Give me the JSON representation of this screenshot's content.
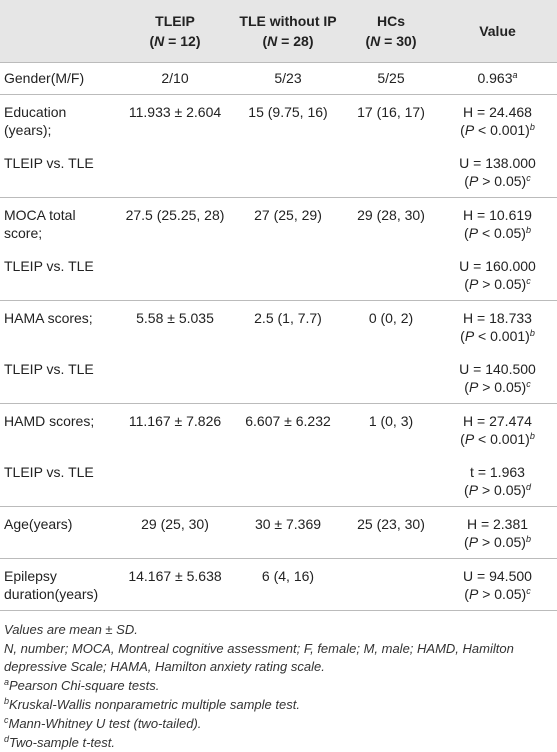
{
  "header": {
    "columns": [
      {
        "title": "TLEIP",
        "n": [
          "(",
          "N",
          " = 12)"
        ]
      },
      {
        "title": "TLE without IP",
        "n": [
          "(",
          "N",
          " = 28)"
        ]
      },
      {
        "title": "HCs",
        "n": [
          "(",
          "N",
          " = 30)"
        ]
      },
      {
        "title": "Value"
      }
    ]
  },
  "table": {
    "rows": [
      {
        "label": [
          "Gender(M/F)"
        ],
        "cells": [
          "2/10",
          "5/23",
          "5/25"
        ],
        "value": {
          "main": "0.963",
          "note": "a"
        },
        "rule": true
      },
      {
        "label": [
          "Education",
          "(years);"
        ],
        "cells": [
          "11.933 ± 2.604",
          "15 (9.75, 16)",
          "17 (16, 17)"
        ],
        "value": {
          "main": "H = 24.468",
          "p": [
            "(",
            "P",
            " < 0.001)"
          ],
          "note": "b"
        }
      },
      {
        "label": [
          "TLEIP vs. TLE"
        ],
        "value": {
          "main": "U = 138.000",
          "p": [
            "(",
            "P",
            " > 0.05)"
          ],
          "note": "c"
        },
        "rule": true
      },
      {
        "label": [
          "MOCA total",
          "score;"
        ],
        "cells": [
          "27.5 (25.25, 28)",
          "27 (25, 29)",
          "29 (28, 30)"
        ],
        "value": {
          "main": "H = 10.619",
          "p": [
            "(",
            "P",
            " < 0.05)"
          ],
          "note": "b"
        }
      },
      {
        "label": [
          "TLEIP vs. TLE"
        ],
        "value": {
          "main": "U = 160.000",
          "p": [
            "(",
            "P",
            " > 0.05)"
          ],
          "note": "c"
        },
        "rule": true
      },
      {
        "label": [
          "HAMA scores;"
        ],
        "cells": [
          "5.58 ± 5.035",
          "2.5 (1, 7.7)",
          "0 (0, 2)"
        ],
        "value": {
          "main": "H = 18.733",
          "p": [
            "(",
            "P",
            " < 0.001)"
          ],
          "note": "b"
        }
      },
      {
        "label": [
          "TLEIP vs. TLE"
        ],
        "value": {
          "main": "U = 140.500",
          "p": [
            "(",
            "P",
            " > 0.05)"
          ],
          "note": "c"
        },
        "rule": true
      },
      {
        "label": [
          "HAMD scores;"
        ],
        "cells": [
          "11.167 ± 7.826",
          "6.607 ± 6.232",
          "1 (0, 3)"
        ],
        "value": {
          "main": "H = 27.474",
          "p": [
            "(",
            "P",
            " < 0.001)"
          ],
          "note": "b"
        }
      },
      {
        "label": [
          "TLEIP vs. TLE"
        ],
        "value": {
          "main": "t = 1.963",
          "p": [
            "(",
            "P",
            " > 0.05)"
          ],
          "note": "d"
        },
        "rule": true
      },
      {
        "label": [
          "Age(years)"
        ],
        "cells": [
          "29 (25, 30)",
          "30 ± 7.369",
          "25 (23, 30)"
        ],
        "value": {
          "main": "H = 2.381",
          "p": [
            "(",
            "P",
            " > 0.05)"
          ],
          "note": "b"
        },
        "rule": true
      },
      {
        "label": [
          "Epilepsy",
          "duration(years)"
        ],
        "cells": [
          "14.167 ± 5.638",
          "6 (4, 16)"
        ],
        "value": {
          "main": "U = 94.500",
          "p": [
            "(",
            "P",
            " > 0.05)"
          ],
          "note": "c"
        },
        "rule": true
      }
    ]
  },
  "footnotes": [
    {
      "text": "Values are mean ± SD."
    },
    {
      "text": "N, number; MOCA, Montreal cognitive assessment; F, female; M, male; HAMD, Hamilton depressive Scale; HAMA, Hamilton anxiety rating scale."
    },
    {
      "mark": "a",
      "text": "Pearson Chi-square tests."
    },
    {
      "mark": "b",
      "text": "Kruskal-Wallis nonparametric multiple sample test."
    },
    {
      "mark": "c",
      "text": "Mann-Whitney U test (two-tailed)."
    },
    {
      "mark": "d",
      "text": "Two-sample t-test."
    }
  ]
}
